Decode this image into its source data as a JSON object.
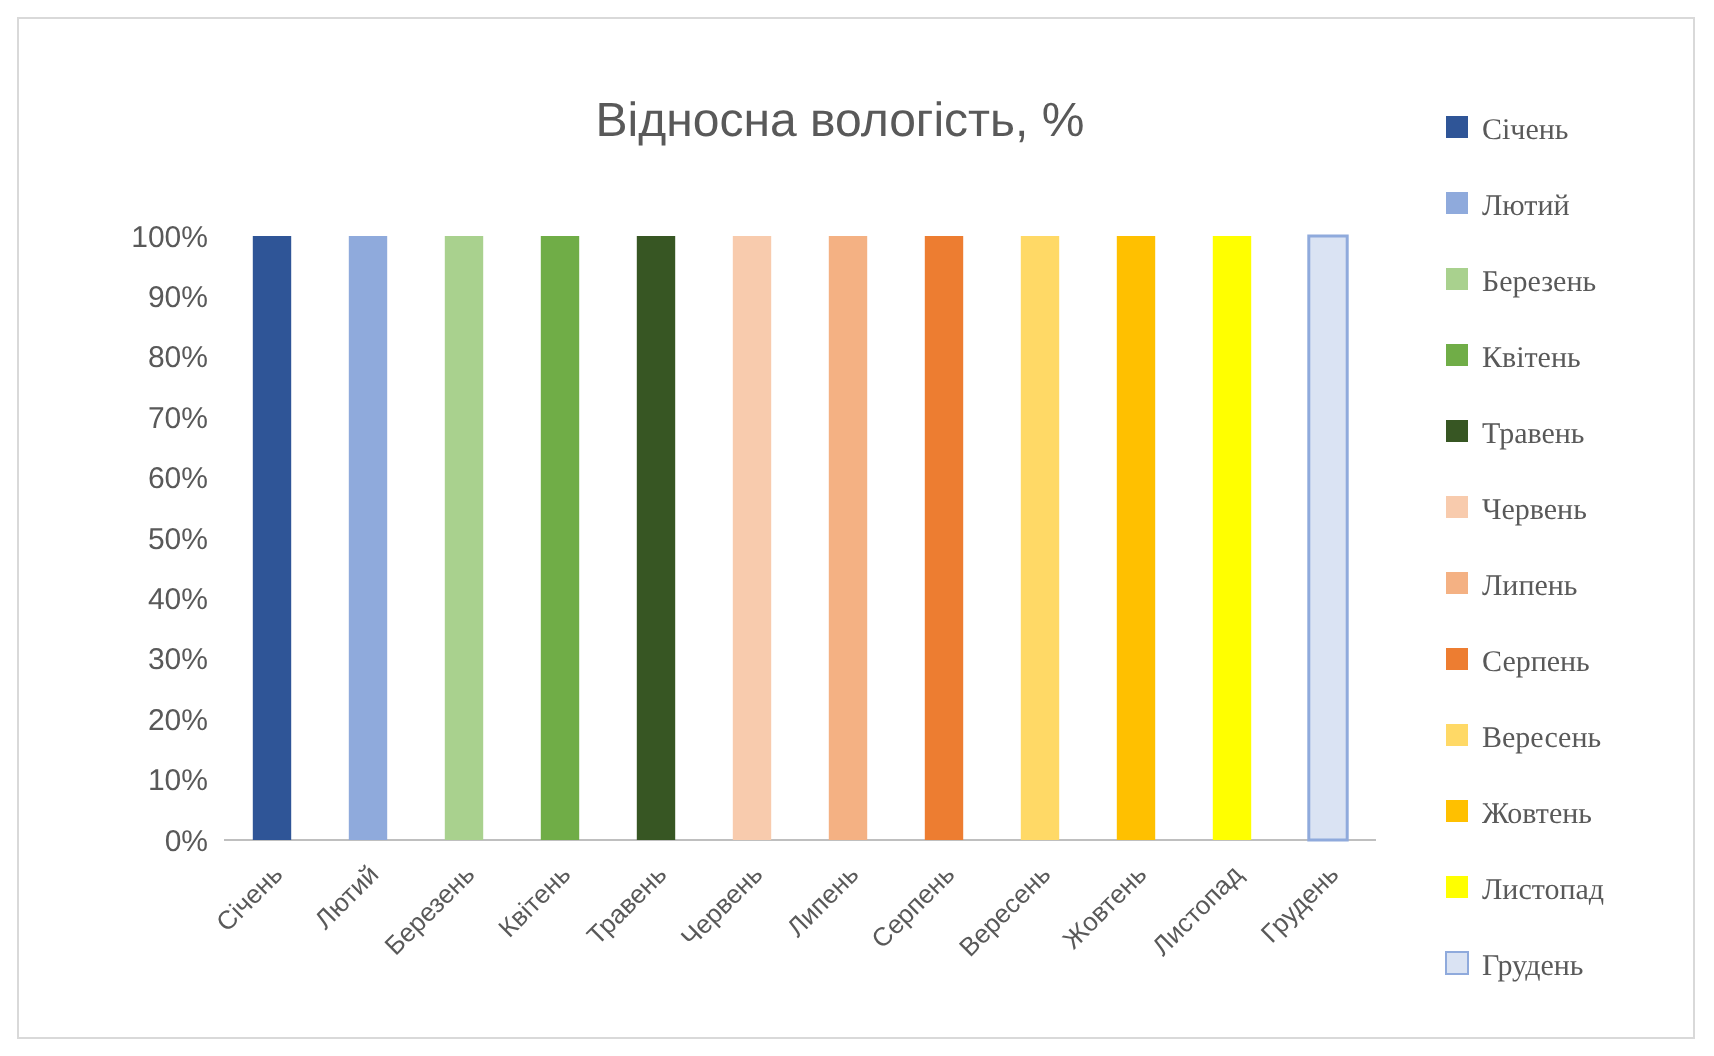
{
  "chart_data": {
    "type": "bar",
    "title": "Відносна вологість, %",
    "stacked": true,
    "categories": [
      "Січень",
      "Лютий",
      "Березень",
      "Квітень",
      "Травень",
      "Червень",
      "Липень",
      "Серпень",
      "Вересень",
      "Жовтень",
      "Листопад",
      "Грудень"
    ],
    "series": [
      {
        "name": "Січень",
        "color": "#2f5597",
        "values": [
          100,
          null,
          null,
          null,
          null,
          null,
          null,
          null,
          null,
          null,
          null,
          null
        ]
      },
      {
        "name": "Лютий",
        "color": "#8faadc",
        "values": [
          null,
          100,
          null,
          null,
          null,
          null,
          null,
          null,
          null,
          null,
          null,
          null
        ]
      },
      {
        "name": "Березень",
        "color": "#a9d18e",
        "values": [
          null,
          null,
          100,
          null,
          null,
          null,
          null,
          null,
          null,
          null,
          null,
          null
        ]
      },
      {
        "name": "Квітень",
        "color": "#70ad47",
        "values": [
          null,
          null,
          null,
          100,
          null,
          null,
          null,
          null,
          null,
          null,
          null,
          null
        ]
      },
      {
        "name": "Травень",
        "color": "#375623",
        "values": [
          null,
          null,
          null,
          null,
          100,
          null,
          null,
          null,
          null,
          null,
          null,
          null
        ]
      },
      {
        "name": "Червень",
        "color": "#f8cbad",
        "values": [
          null,
          null,
          null,
          null,
          null,
          100,
          null,
          null,
          null,
          null,
          null,
          null
        ]
      },
      {
        "name": "Липень",
        "color": "#f4b183",
        "values": [
          null,
          null,
          null,
          null,
          null,
          null,
          100,
          null,
          null,
          null,
          null,
          null
        ]
      },
      {
        "name": "Серпень",
        "color": "#ed7d31",
        "values": [
          null,
          null,
          null,
          null,
          null,
          null,
          null,
          100,
          null,
          null,
          null,
          null
        ]
      },
      {
        "name": "Вересень",
        "color": "#ffd966",
        "values": [
          null,
          null,
          null,
          null,
          null,
          null,
          null,
          null,
          100,
          null,
          null,
          null
        ]
      },
      {
        "name": "Жовтень",
        "color": "#ffc000",
        "values": [
          null,
          null,
          null,
          null,
          null,
          null,
          null,
          null,
          null,
          100,
          null,
          null
        ]
      },
      {
        "name": "Листопад",
        "color": "#ffff00",
        "values": [
          null,
          null,
          null,
          null,
          null,
          null,
          null,
          null,
          null,
          null,
          100,
          null
        ]
      },
      {
        "name": "Грудень",
        "color": "#dae3f3",
        "values": [
          null,
          null,
          null,
          null,
          null,
          null,
          null,
          null,
          null,
          null,
          null,
          100
        ]
      }
    ],
    "ylim": [
      0,
      100
    ],
    "yticks": [
      {
        "value": 0,
        "label": "0%"
      },
      {
        "value": 10,
        "label": "10%"
      },
      {
        "value": 20,
        "label": "20%"
      },
      {
        "value": 30,
        "label": "30%"
      },
      {
        "value": 40,
        "label": "40%"
      },
      {
        "value": 50,
        "label": "50%"
      },
      {
        "value": 60,
        "label": "60%"
      },
      {
        "value": 70,
        "label": "70%"
      },
      {
        "value": 80,
        "label": "80%"
      },
      {
        "value": 90,
        "label": "90%"
      },
      {
        "value": 100,
        "label": "100%"
      }
    ],
    "legend": "right"
  }
}
